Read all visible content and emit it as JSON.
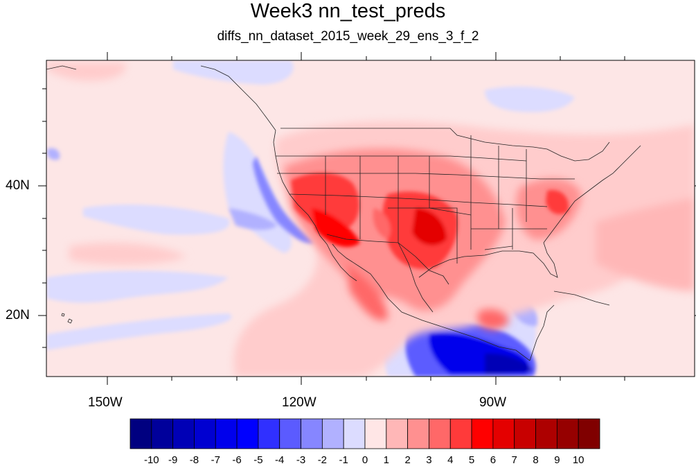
{
  "title": "Week3 nn_test_preds",
  "subtitle": "diffs_nn_dataset_2015_week_29_ens_3_f_2",
  "map": {
    "lon_range": [
      -160,
      -62
    ],
    "lat_range": [
      10,
      59
    ],
    "lon_ticks": [
      {
        "label": "150W"
      },
      {
        "label": "120W"
      },
      {
        "label": "90W"
      }
    ],
    "lat_ticks": [
      {
        "label": "40N"
      },
      {
        "label": "20N"
      }
    ],
    "background_color": "#fde6e6"
  },
  "colorbar": {
    "colors": [
      "#000080",
      "#00009b",
      "#0000b6",
      "#0000d1",
      "#0000ec",
      "#0000ff",
      "#3030ff",
      "#5b5bff",
      "#8686ff",
      "#b1b1ff",
      "#dcdcff",
      "#ffe6e6",
      "#ffb7b7",
      "#ff9090",
      "#ff6868",
      "#ff3a3a",
      "#ff0000",
      "#e40000",
      "#c80000",
      "#ad0000",
      "#960000",
      "#800000"
    ],
    "labels": [
      "-10",
      "-9",
      "-8",
      "-7",
      "-6",
      "-5",
      "-4",
      "-3",
      "-2",
      "-1",
      "0",
      "1",
      "2",
      "3",
      "4",
      "5",
      "6",
      "7",
      "8",
      "9",
      "10"
    ]
  }
}
